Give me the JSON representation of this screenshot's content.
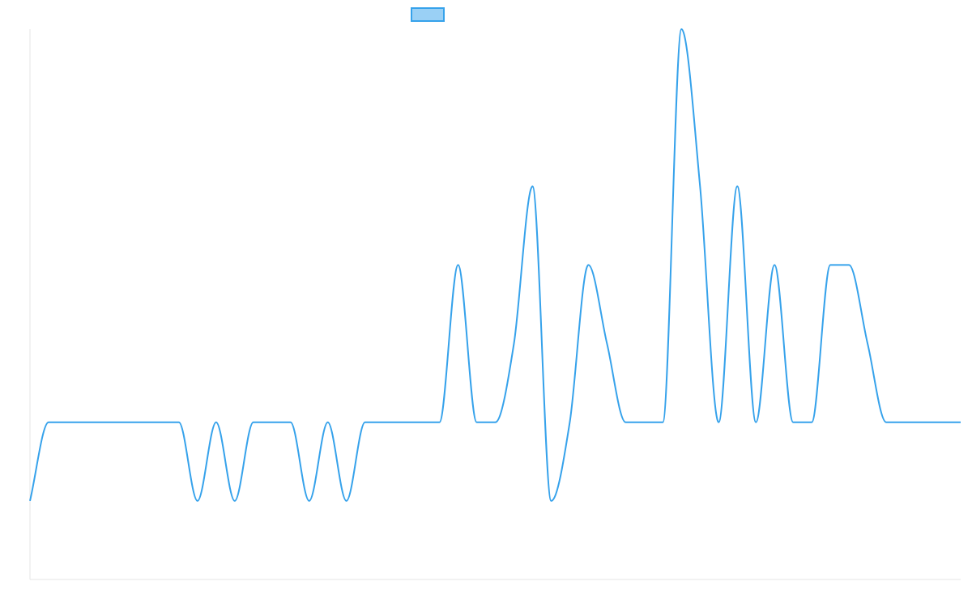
{
  "colors": {
    "series": "#36a2eb",
    "series_fill": "#9ad0f5",
    "axis": "#e6e6e6",
    "background": "#ffffff"
  },
  "chart_data": {
    "type": "line",
    "title": "",
    "xlabel": "",
    "ylabel": "",
    "grid": false,
    "legend": {
      "position": "top-center",
      "entries": [
        {
          "label": ""
        }
      ]
    },
    "x_tick_labels": false,
    "y_tick_labels": false,
    "ylim": [
      -2,
      5
    ],
    "series": [
      {
        "smooth": true,
        "x": [
          0,
          1,
          2,
          3,
          4,
          5,
          6,
          7,
          8,
          9,
          10,
          11,
          12,
          13,
          14,
          15,
          16,
          17,
          18,
          19,
          20,
          21,
          22,
          23,
          24,
          25,
          26,
          27,
          28,
          29,
          30,
          31,
          32,
          33,
          34,
          35,
          36,
          37,
          38,
          39,
          40,
          41,
          42,
          43,
          44,
          45,
          46,
          47,
          48,
          49,
          50
        ],
        "values": [
          -1,
          0,
          0,
          0,
          0,
          0,
          0,
          0,
          0,
          -1,
          0,
          -1,
          0,
          0,
          0,
          -1,
          0,
          -1,
          0,
          0,
          0,
          0,
          0,
          2,
          0,
          0,
          1,
          3,
          -1,
          0,
          2,
          1,
          0,
          0,
          0,
          5,
          3,
          0,
          3,
          0,
          2,
          0,
          0,
          2,
          2,
          1,
          0,
          0,
          0,
          0,
          0
        ]
      }
    ]
  }
}
